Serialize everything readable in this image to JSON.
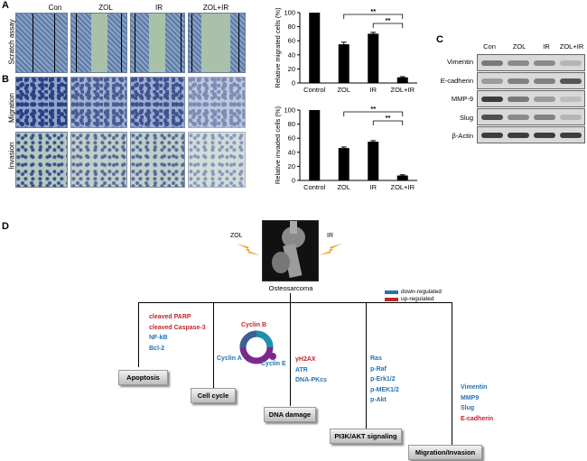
{
  "colors": {
    "bar": "#000000",
    "up": "#c0262d",
    "down": "#2274b5",
    "lightning": "#f29a1d"
  },
  "panel_a": {
    "letter": "A",
    "columns": [
      "Con",
      "ZOL",
      "IR",
      "ZOL+IR"
    ],
    "row_label": "Scratch assay"
  },
  "panel_b": {
    "letter": "B",
    "row_labels": [
      "Migration",
      "Invasion"
    ]
  },
  "panel_c": {
    "letter": "C",
    "lanes": [
      "Con",
      "ZOL",
      "IR",
      "ZOL+IR"
    ],
    "proteins": [
      "Vimentin",
      "E-cadherin",
      "MMP-9",
      "Slug",
      "β-Actin"
    ]
  },
  "chart_data": [
    {
      "type": "bar",
      "categories": [
        "Control",
        "ZOL",
        "IR",
        "ZOL+IR"
      ],
      "values": [
        100,
        55,
        70,
        8
      ],
      "errors": [
        0,
        3,
        2,
        1
      ],
      "title": "",
      "xlabel": "",
      "ylabel": "Relative migrated cells (%)",
      "ylim": [
        0,
        100
      ],
      "yticks": [
        0,
        20,
        40,
        60,
        80,
        100
      ],
      "annotations": [
        "**",
        "**"
      ]
    },
    {
      "type": "bar",
      "categories": [
        "Control",
        "ZOL",
        "IR",
        "ZOL+IR"
      ],
      "values": [
        100,
        46,
        55,
        7
      ],
      "errors": [
        0,
        1.5,
        1.5,
        1
      ],
      "title": "",
      "xlabel": "",
      "ylabel": "Relative invaded cells (%)",
      "ylim": [
        0,
        100
      ],
      "yticks": [
        0,
        20,
        40,
        60,
        80,
        100
      ],
      "annotations": [
        "**",
        "**"
      ]
    }
  ],
  "panel_d": {
    "letter": "D",
    "zol": "ZOL",
    "ir": "IR",
    "center": "Osteosarcoma",
    "legend": {
      "down": "down-regulated",
      "up": "up-regulated"
    },
    "cyclin_b": "Cyclin B",
    "cyclin_a": "Cyclin A",
    "cyclin_e": "Cyclin E",
    "apoptosis": {
      "label": "Apoptosis",
      "items": [
        {
          "text": "cleaved PARP",
          "color": "red"
        },
        {
          "text": "cleaved Caspase-3",
          "color": "red"
        },
        {
          "text": "NF-kB",
          "color": "blue"
        },
        {
          "text": "Bcl-2",
          "color": "blue"
        }
      ]
    },
    "cell_cycle": {
      "label": "Cell cycle"
    },
    "dna_damage": {
      "label": "DNA damage",
      "items": [
        {
          "text": "γH2AX",
          "color": "red"
        },
        {
          "text": "ATR",
          "color": "blue"
        },
        {
          "text": "DNA-PKcs",
          "color": "blue"
        }
      ]
    },
    "pi3k": {
      "label": "PI3K/AKT signaling",
      "items": [
        {
          "text": "Ras",
          "color": "blue"
        },
        {
          "text": "p-Raf",
          "color": "blue"
        },
        {
          "text": "p-Erk1/2",
          "color": "blue"
        },
        {
          "text": "p-MEK1/2",
          "color": "blue"
        },
        {
          "text": "p-Akt",
          "color": "blue"
        }
      ]
    },
    "migration": {
      "label": "Migration/Invasion",
      "items": [
        {
          "text": "Vimentin",
          "color": "blue"
        },
        {
          "text": "MMP9",
          "color": "blue"
        },
        {
          "text": "Slug",
          "color": "blue"
        },
        {
          "text": "E-cadherin",
          "color": "red"
        }
      ]
    }
  }
}
